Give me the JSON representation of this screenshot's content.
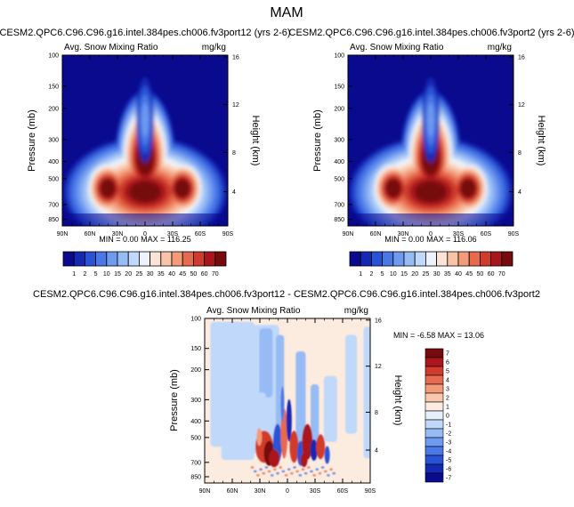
{
  "page": {
    "title": "MAM"
  },
  "colors": {
    "frame": "#000000",
    "cmap_abs": [
      "#0a0a8f",
      "#1428b4",
      "#2a52d6",
      "#4a78e6",
      "#6e9af0",
      "#97bcf5",
      "#c0d8fa",
      "#eef3fb",
      "#fbe4d6",
      "#f8c3a6",
      "#f39a78",
      "#e66a4e",
      "#cf3b2c",
      "#a8161b",
      "#760a0e"
    ],
    "cmap_diff": [
      "#0a0a8f",
      "#1428b4",
      "#2a52d6",
      "#4a78e6",
      "#6e9af0",
      "#97bcf5",
      "#c0d8fa",
      "#e6f0fb",
      "#fcebdf",
      "#f8c8ae",
      "#f39b79",
      "#e76b50",
      "#d13b2c",
      "#aa161b",
      "#760a0e"
    ]
  },
  "panels": {
    "top_left": {
      "title": "CESM2.QPC6.C96.C96.g16.intel.384pes.ch006.fv3port12 (yrs 2-6)",
      "left_string": "Avg. Snow Mixing Ratio",
      "right_string": "mg/kg",
      "stats": "MIN =   0.00  MAX = 116.25"
    },
    "top_right": {
      "title": "CESM2.QPC6.C96.C96.g16.intel.384pes.ch006.fv3port2 (yrs 2-6)",
      "left_string": "Avg. Snow Mixing Ratio",
      "right_string": "mg/kg",
      "stats": "MIN =   0.00  MAX = 116.06"
    },
    "bottom": {
      "title": "CESM2.QPC6.C96.C96.g16.intel.384pes.ch006.fv3port12 - CESM2.QPC6.C96.C96.g16.intel.384pes.ch006.fv3port2",
      "left_string": "Avg. Snow Mixing Ratio",
      "right_string": "mg/kg",
      "stats": "MIN = -6.58  MAX = 13.06"
    }
  },
  "chart_data": [
    {
      "type": "heatmap",
      "title": "CESM2.QPC6.C96.C96.g16.intel.384pes.ch006.fv3port12 (yrs 2-6)",
      "variable": "Avg. Snow Mixing Ratio",
      "units": "mg/kg",
      "ylabel": "Pressure (mb)",
      "ylabel_right": "Height (km)",
      "x_ticks": [
        "90N",
        "60N",
        "30N",
        "0",
        "30S",
        "60S",
        "90S"
      ],
      "y_ticks": [
        "100",
        "150",
        "200",
        "300",
        "400",
        "500",
        "700",
        "850"
      ],
      "y_right_ticks": [
        "16",
        "12",
        "8",
        "4"
      ],
      "min": 0.0,
      "max": 116.25
    },
    {
      "type": "heatmap",
      "title": "CESM2.QPC6.C96.C96.g16.intel.384pes.ch006.fv3port2 (yrs 2-6)",
      "variable": "Avg. Snow Mixing Ratio",
      "units": "mg/kg",
      "ylabel": "Pressure (mb)",
      "ylabel_right": "Height (km)",
      "x_ticks": [
        "90N",
        "60N",
        "30N",
        "0",
        "30S",
        "60S",
        "90S"
      ],
      "y_ticks": [
        "100",
        "150",
        "200",
        "300",
        "400",
        "500",
        "700",
        "850"
      ],
      "y_right_ticks": [
        "16",
        "12",
        "8",
        "4"
      ],
      "min": 0.0,
      "max": 116.06
    },
    {
      "type": "heatmap",
      "title": "CESM2.QPC6.C96.C96.g16.intel.384pes.ch006.fv3port12 - CESM2.QPC6.C96.C96.g16.intel.384pes.ch006.fv3port2",
      "variable": "Avg. Snow Mixing Ratio",
      "units": "mg/kg",
      "ylabel": "Pressure (mb)",
      "ylabel_right": "Height (km)",
      "x_ticks": [
        "90N",
        "60N",
        "30N",
        "0",
        "30S",
        "60S",
        "90S"
      ],
      "y_ticks": [
        "100",
        "150",
        "200",
        "300",
        "400",
        "500",
        "700",
        "850"
      ],
      "y_right_ticks": [
        "16",
        "12",
        "8",
        "4"
      ],
      "min": -6.58,
      "max": 13.06
    }
  ],
  "colorbars": {
    "absolute": {
      "labels": [
        "1",
        "2",
        "5",
        "10",
        "15",
        "20",
        "25",
        "30",
        "35",
        "40",
        "45",
        "50",
        "60",
        "70"
      ]
    },
    "difference": {
      "labels": [
        "7",
        "6",
        "5",
        "4",
        "3",
        "2",
        "1",
        "0",
        "-1",
        "-2",
        "-3",
        "-4",
        "-5",
        "-6",
        "-7"
      ]
    }
  }
}
